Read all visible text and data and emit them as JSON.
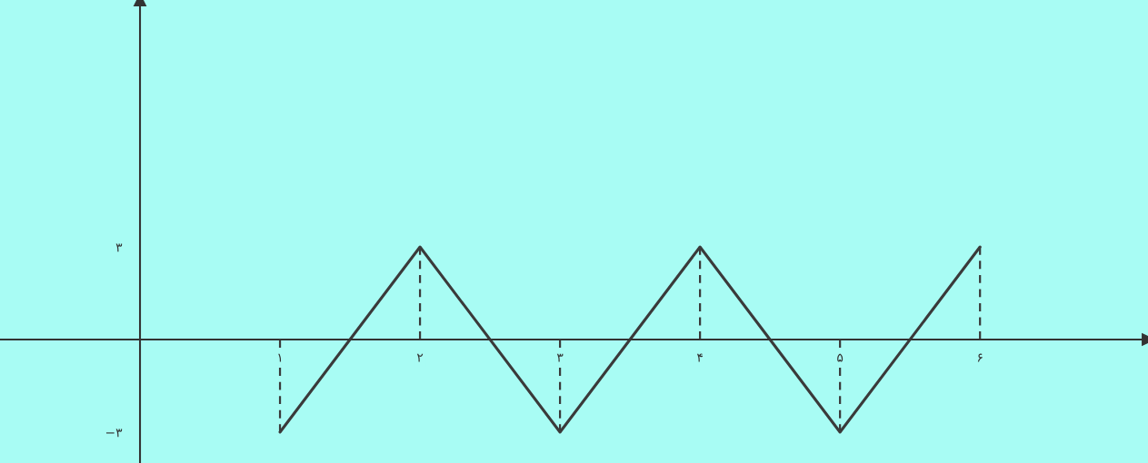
{
  "chart_data": {
    "type": "line",
    "xlim": [
      -1,
      7.2
    ],
    "ylim": [
      -4,
      11
    ],
    "xticks": [
      {
        "value": 1,
        "label": "۱"
      },
      {
        "value": 2,
        "label": "۲"
      },
      {
        "value": 3,
        "label": "۳"
      },
      {
        "value": 4,
        "label": "۴"
      },
      {
        "value": 5,
        "label": "۵"
      },
      {
        "value": 6,
        "label": "۶"
      }
    ],
    "yticks": [
      {
        "value": -3,
        "label": "−۳"
      },
      {
        "value": 3,
        "label": "۳"
      }
    ],
    "grid": false,
    "marker": "none",
    "series": [
      {
        "color": "#3a3a3a",
        "x": [
          1,
          2,
          3,
          4,
          5,
          6
        ],
        "values": [
          -3,
          3,
          -3,
          3,
          -3,
          3
        ],
        "line_style": "solid"
      },
      {
        "color": "#3a3a3a",
        "x": [
          1,
          1
        ],
        "values": [
          0,
          -3
        ],
        "line_style": "dashed"
      },
      {
        "color": "#3a3a3a",
        "x": [
          2,
          2
        ],
        "values": [
          0,
          3
        ],
        "line_style": "dashed"
      },
      {
        "color": "#3a3a3a",
        "x": [
          3,
          3
        ],
        "values": [
          0,
          -3
        ],
        "line_style": "dashed"
      },
      {
        "color": "#3a3a3a",
        "x": [
          4,
          4
        ],
        "values": [
          0,
          3
        ],
        "line_style": "dashed"
      },
      {
        "color": "#3a3a3a",
        "x": [
          5,
          5
        ],
        "values": [
          0,
          -3
        ],
        "line_style": "dashed"
      },
      {
        "color": "#3a3a3a",
        "x": [
          6,
          6
        ],
        "values": [
          0,
          3
        ],
        "line_style": "dashed"
      }
    ]
  }
}
